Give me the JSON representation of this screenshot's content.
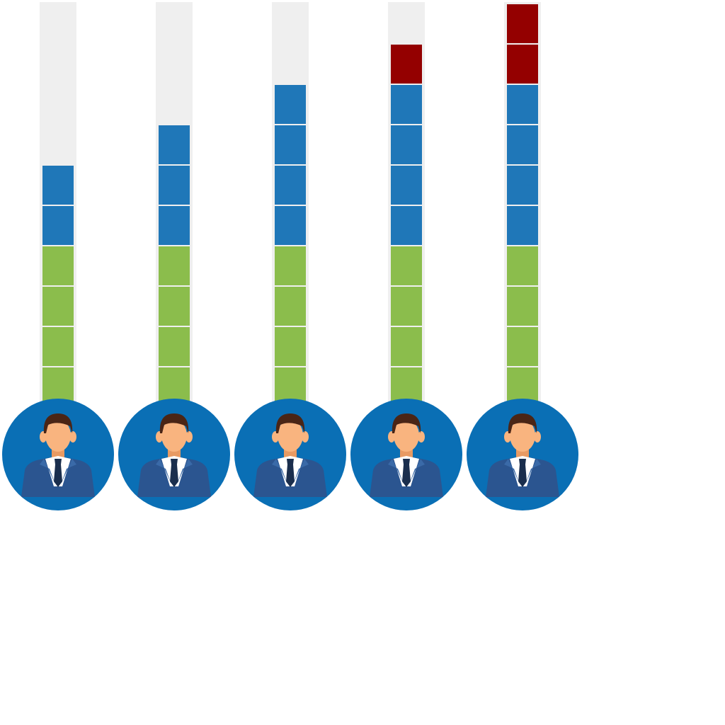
{
  "chart_data": {
    "type": "bar",
    "stacked": true,
    "unit_block": 1,
    "categories": [
      "",
      "",
      "",
      "",
      ""
    ],
    "segment_colors": {
      "green": "#8bbd4c",
      "blue": "#1f77b8",
      "red": "#940000",
      "track": "#efefef"
    },
    "series": [
      {
        "color_key": "green",
        "values": [
          4,
          4,
          4,
          4,
          4
        ]
      },
      {
        "color_key": "blue",
        "values": [
          2,
          3,
          4,
          4,
          4
        ]
      },
      {
        "color_key": "red",
        "values": [
          0,
          0,
          0,
          1,
          2
        ]
      }
    ],
    "totals": [
      6,
      7,
      8,
      9,
      10
    ],
    "ylim": [
      0,
      10
    ],
    "grid": false,
    "legend": "none"
  },
  "avatar": {
    "icon": "businessman-icon",
    "circle_color": "#0a6fb5",
    "skin_color": "#f9b47f",
    "hair_color": "#4a2516",
    "suit_color": "#2b5590",
    "tie_color": "#1a2e4d"
  }
}
